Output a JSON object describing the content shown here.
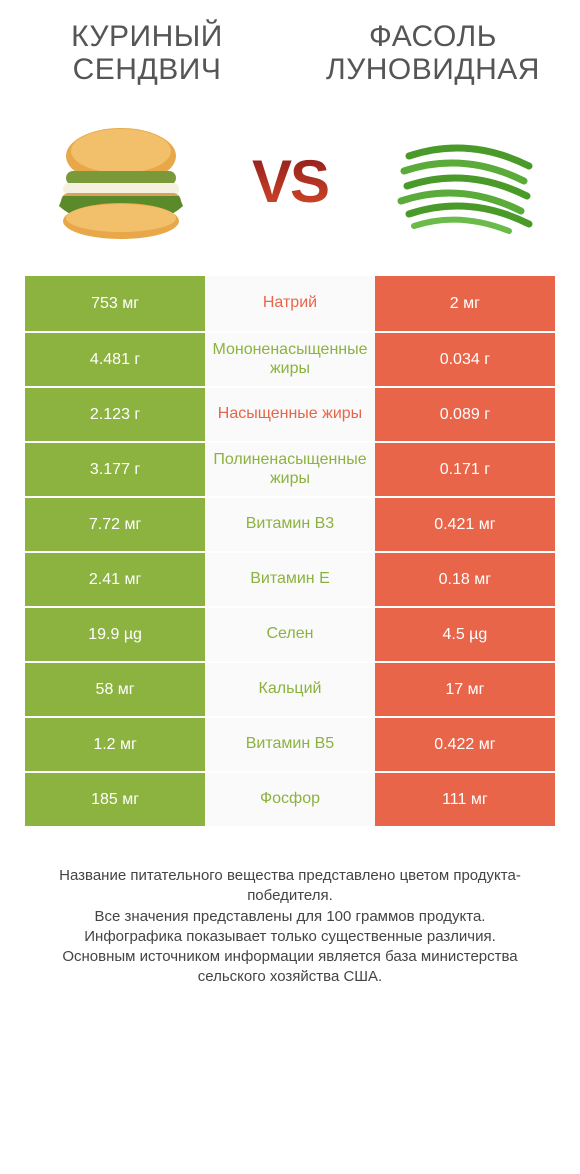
{
  "colors": {
    "green": "#8cb23f",
    "orange": "#e8654a",
    "mid_bg": "#fafafa"
  },
  "header": {
    "left_title": "Куриный сендвич",
    "right_title": "Фасоль луновидная",
    "vs": "VS"
  },
  "rows": [
    {
      "name": "Натрий",
      "left": "753 мг",
      "right": "2 мг",
      "winner": "right",
      "left_color": "#8cb23f",
      "right_color": "#e8654a",
      "label_color": "#e8654a"
    },
    {
      "name": "Мононенасыщенные жиры",
      "left": "4.481 г",
      "right": "0.034 г",
      "winner": "left",
      "left_color": "#8cb23f",
      "right_color": "#e8654a",
      "label_color": "#8cb23f"
    },
    {
      "name": "Насыщенные жиры",
      "left": "2.123 г",
      "right": "0.089 г",
      "winner": "right",
      "left_color": "#8cb23f",
      "right_color": "#e8654a",
      "label_color": "#e8654a"
    },
    {
      "name": "Полиненасыщенные жиры",
      "left": "3.177 г",
      "right": "0.171 г",
      "winner": "left",
      "left_color": "#8cb23f",
      "right_color": "#e8654a",
      "label_color": "#8cb23f"
    },
    {
      "name": "Витамин B3",
      "left": "7.72 мг",
      "right": "0.421 мг",
      "winner": "left",
      "left_color": "#8cb23f",
      "right_color": "#e8654a",
      "label_color": "#8cb23f"
    },
    {
      "name": "Витамин E",
      "left": "2.41 мг",
      "right": "0.18 мг",
      "winner": "left",
      "left_color": "#8cb23f",
      "right_color": "#e8654a",
      "label_color": "#8cb23f"
    },
    {
      "name": "Селен",
      "left": "19.9 µg",
      "right": "4.5 µg",
      "winner": "left",
      "left_color": "#8cb23f",
      "right_color": "#e8654a",
      "label_color": "#8cb23f"
    },
    {
      "name": "Кальций",
      "left": "58 мг",
      "right": "17 мг",
      "winner": "left",
      "left_color": "#8cb23f",
      "right_color": "#e8654a",
      "label_color": "#8cb23f"
    },
    {
      "name": "Витамин B5",
      "left": "1.2 мг",
      "right": "0.422 мг",
      "winner": "left",
      "left_color": "#8cb23f",
      "right_color": "#e8654a",
      "label_color": "#8cb23f"
    },
    {
      "name": "Фосфор",
      "left": "185 мг",
      "right": "111 мг",
      "winner": "left",
      "left_color": "#8cb23f",
      "right_color": "#e8654a",
      "label_color": "#8cb23f"
    }
  ],
  "footer": {
    "line1": "Название питательного вещества представлено цветом продукта-победителя.",
    "line2": "Все значения представлены для 100 граммов продукта.",
    "line3": "Инфографика показывает только существенные различия.",
    "line4": "Основным источником информации является база министерства сельского хозяйства США."
  }
}
